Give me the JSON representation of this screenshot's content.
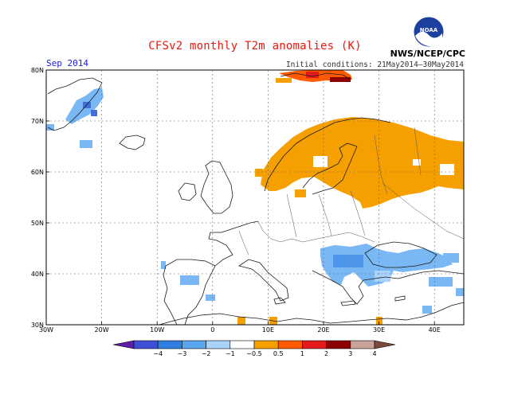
{
  "header": {
    "title": "CFSv2 monthly T2m anomalies (K)",
    "month": "Sep 2014",
    "initial_conditions": "Initial conditions: 21May2014–30May2014",
    "agency": "NWS/NCEP/CPC",
    "logo_text": "NOAA"
  },
  "map": {
    "lat_labels": [
      "80N",
      "70N",
      "60N",
      "50N",
      "40N",
      "30N"
    ],
    "lon_labels": [
      "30W",
      "20W",
      "10W",
      "0",
      "10E",
      "20E",
      "30E",
      "40E"
    ]
  },
  "colorbar": {
    "ticks": [
      "−4",
      "−3",
      "−2",
      "−1",
      "−0.5",
      "0.5",
      "1",
      "2",
      "3",
      "4"
    ],
    "colors": [
      "#5a1fa6",
      "#3d4fd6",
      "#2f7fe0",
      "#5aa7f0",
      "#a9d3fb",
      "#ffffff",
      "#f5a000",
      "#ff5a00",
      "#e31a1c",
      "#8b0000",
      "#c9a39a",
      "#7a4a3a"
    ]
  }
}
